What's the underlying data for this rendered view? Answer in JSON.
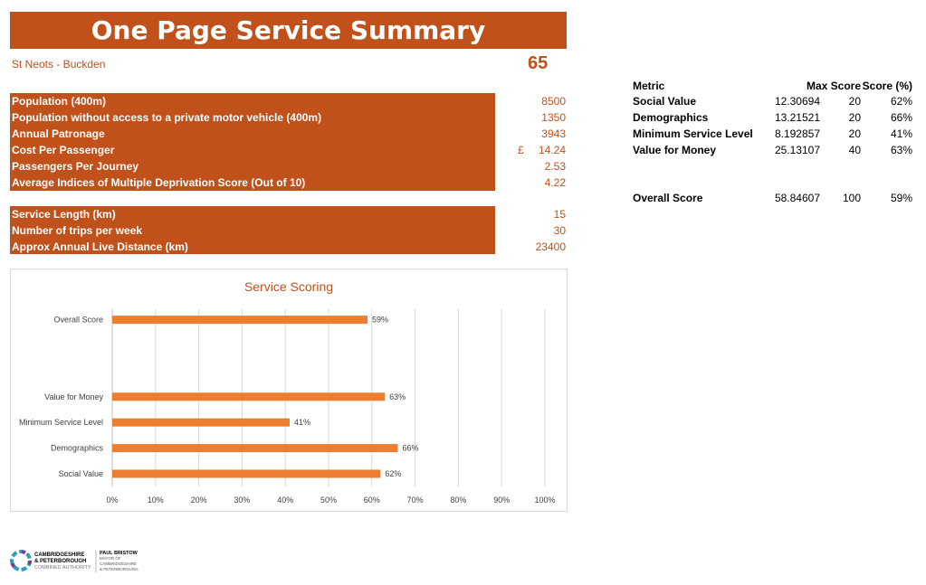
{
  "title": "One Page Service Summary",
  "route": "St Neots - Buckden",
  "score": "65",
  "block1": [
    {
      "label": "Population (400m)",
      "value": "8500"
    },
    {
      "label": "Population without access to a private motor vehicle (400m)",
      "value": "1350"
    },
    {
      "label": "Annual Patronage",
      "value": "3943"
    },
    {
      "label": "Cost Per Passenger",
      "currency": "£",
      "value": "14.24"
    },
    {
      "label": "Passengers Per Journey",
      "value": "2.53"
    },
    {
      "label": "Average Indices of Multiple Deprivation Score (Out of 10)",
      "value": "4.22"
    }
  ],
  "block2": [
    {
      "label": "Service Length (km)",
      "value": "15"
    },
    {
      "label": "Number of trips per week",
      "value": "30"
    },
    {
      "label": "Approx Annual Live Distance (km)",
      "value": "23400"
    }
  ],
  "metrics": {
    "headers": [
      "Metric",
      "",
      "Max Score",
      "Score (%)"
    ],
    "rows": [
      [
        "Social Value",
        "12.30694",
        "20",
        "62%"
      ],
      [
        "Demographics",
        "13.21521",
        "20",
        "66%"
      ],
      [
        "Minimum Service Level",
        "8.192857",
        "20",
        "41%"
      ],
      [
        "Value for Money",
        "25.13107",
        "40",
        "63%"
      ]
    ],
    "overall": [
      "Overall Score",
      "58.84607",
      "100",
      "59%"
    ]
  },
  "logo": {
    "org": "CAMBRIDGESHIRE & PETERBOROUGH COMBINED AUTHORITY",
    "mayor": "PAUL BRISTOW MAYOR OF CAMBRIDGESHIRE & PETERBOROUGH"
  },
  "chart_data": {
    "type": "bar",
    "orientation": "horizontal",
    "title": "Service Scoring",
    "categories": [
      "Social Value",
      "Demographics",
      "Minimum Service Level",
      "Value for Money",
      "",
      "",
      "Overall Score"
    ],
    "values": [
      62,
      66,
      41,
      63,
      null,
      null,
      59
    ],
    "labels": [
      "62%",
      "66%",
      "41%",
      "63%",
      "",
      "",
      "59%"
    ],
    "xlim": [
      0,
      100
    ],
    "xticks": [
      "0%",
      "10%",
      "20%",
      "30%",
      "40%",
      "50%",
      "60%",
      "70%",
      "80%",
      "90%",
      "100%"
    ],
    "grid": true,
    "color": "#ed7d31"
  }
}
